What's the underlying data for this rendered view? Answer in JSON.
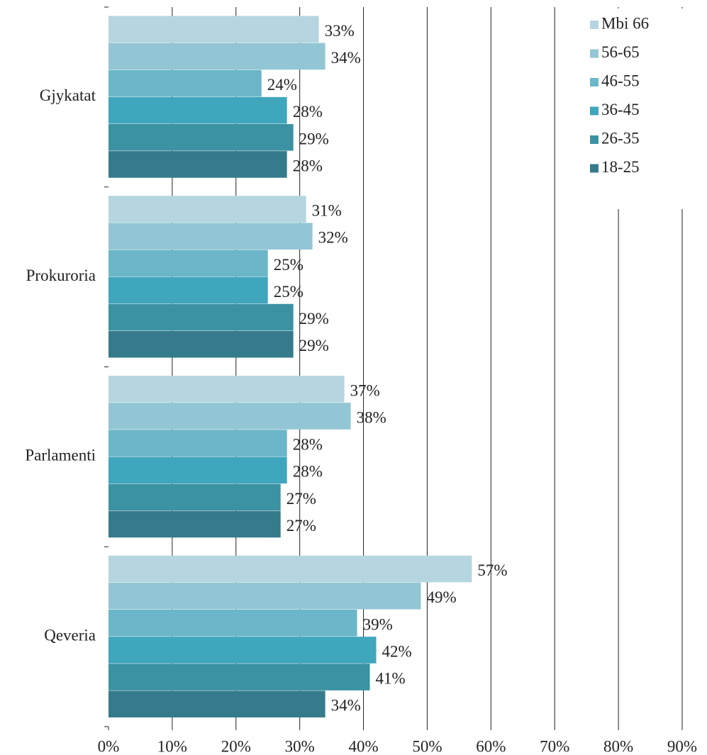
{
  "chart_data": {
    "type": "bar",
    "orientation": "horizontal",
    "categories": [
      "Gjykatat",
      "Prokuroria",
      "Parlamenti",
      "Qeveria"
    ],
    "series": [
      {
        "name": "Mbi 66",
        "color": "#b5d6e0",
        "values": [
          33,
          31,
          37,
          57
        ],
        "value_labels": [
          "33%",
          "31%",
          "37%",
          "57%"
        ]
      },
      {
        "name": "56-65",
        "color": "#93c6d4",
        "values": [
          34,
          32,
          38,
          49
        ],
        "value_labels": [
          "34%",
          "32%",
          "38%",
          "49%"
        ]
      },
      {
        "name": "46-55",
        "color": "#6bb6c9",
        "values": [
          24,
          25,
          28,
          39
        ],
        "value_labels": [
          "24%",
          "25%",
          "28%",
          "39%"
        ]
      },
      {
        "name": "36-45",
        "color": "#40a6bd",
        "values": [
          28,
          25,
          28,
          42
        ],
        "value_labels": [
          "28%",
          "25%",
          "28%",
          "42%"
        ]
      },
      {
        "name": "26-35",
        "color": "#3b92a3",
        "values": [
          29,
          29,
          27,
          41
        ],
        "value_labels": [
          "29%",
          "29%",
          "27%",
          "41%"
        ]
      },
      {
        "name": "18-25",
        "color": "#357b8c",
        "values": [
          28,
          29,
          27,
          34
        ],
        "value_labels": [
          "28%",
          "29%",
          "27%",
          "34%"
        ]
      }
    ],
    "xlim": [
      0,
      90
    ],
    "xticks": [
      {
        "value": 0,
        "label": "0%"
      },
      {
        "value": 10,
        "label": "10%"
      },
      {
        "value": 20,
        "label": "20%"
      },
      {
        "value": 30,
        "label": "30%"
      },
      {
        "value": 40,
        "label": "40%"
      },
      {
        "value": 50,
        "label": "50%"
      },
      {
        "value": 60,
        "label": "60%"
      },
      {
        "value": 70,
        "label": "70%"
      },
      {
        "value": 80,
        "label": "80%"
      },
      {
        "value": 90,
        "label": "90%"
      }
    ],
    "grid": true,
    "legend": "top-right"
  }
}
